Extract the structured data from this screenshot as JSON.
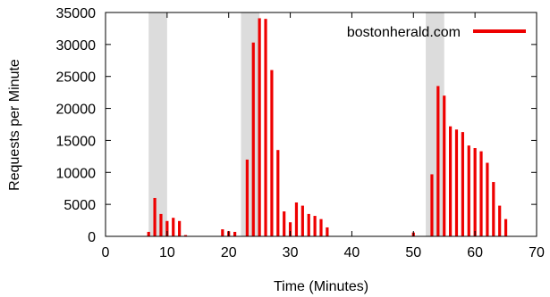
{
  "chart_data": {
    "type": "bar",
    "xlabel": "Time (Minutes)",
    "ylabel": "Requests per Minute",
    "xlim": [
      0,
      70
    ],
    "ylim": [
      0,
      35000
    ],
    "xticks": [
      "0",
      "10",
      "20",
      "30",
      "40",
      "50",
      "60",
      "70"
    ],
    "yticks": [
      "0",
      "5000",
      "10000",
      "15000",
      "20000",
      "25000",
      "30000",
      "35000"
    ],
    "grid": false,
    "legend_position": "top-right",
    "shaded_regions": [
      [
        7,
        10
      ],
      [
        22,
        25
      ],
      [
        52,
        55
      ]
    ],
    "shade_color": "#dcdcdc",
    "series": [
      {
        "name": "bostonherald.com",
        "color": "#ee0000",
        "x": [
          7,
          8,
          9,
          10,
          11,
          12,
          13,
          19,
          20,
          21,
          23,
          24,
          25,
          26,
          27,
          28,
          29,
          30,
          31,
          32,
          33,
          34,
          35,
          36,
          50,
          53,
          54,
          55,
          56,
          57,
          58,
          59,
          60,
          61,
          62,
          63,
          64,
          65
        ],
        "values": [
          700,
          6000,
          3500,
          2400,
          2900,
          2400,
          200,
          1100,
          800,
          700,
          12000,
          30300,
          34100,
          34000,
          26000,
          13500,
          3900,
          2200,
          5300,
          4800,
          3500,
          3200,
          2700,
          1400,
          600,
          9700,
          23500,
          22000,
          17200,
          16700,
          16300,
          14200,
          13800,
          13300,
          11500,
          8500,
          4800,
          2700
        ]
      }
    ]
  }
}
